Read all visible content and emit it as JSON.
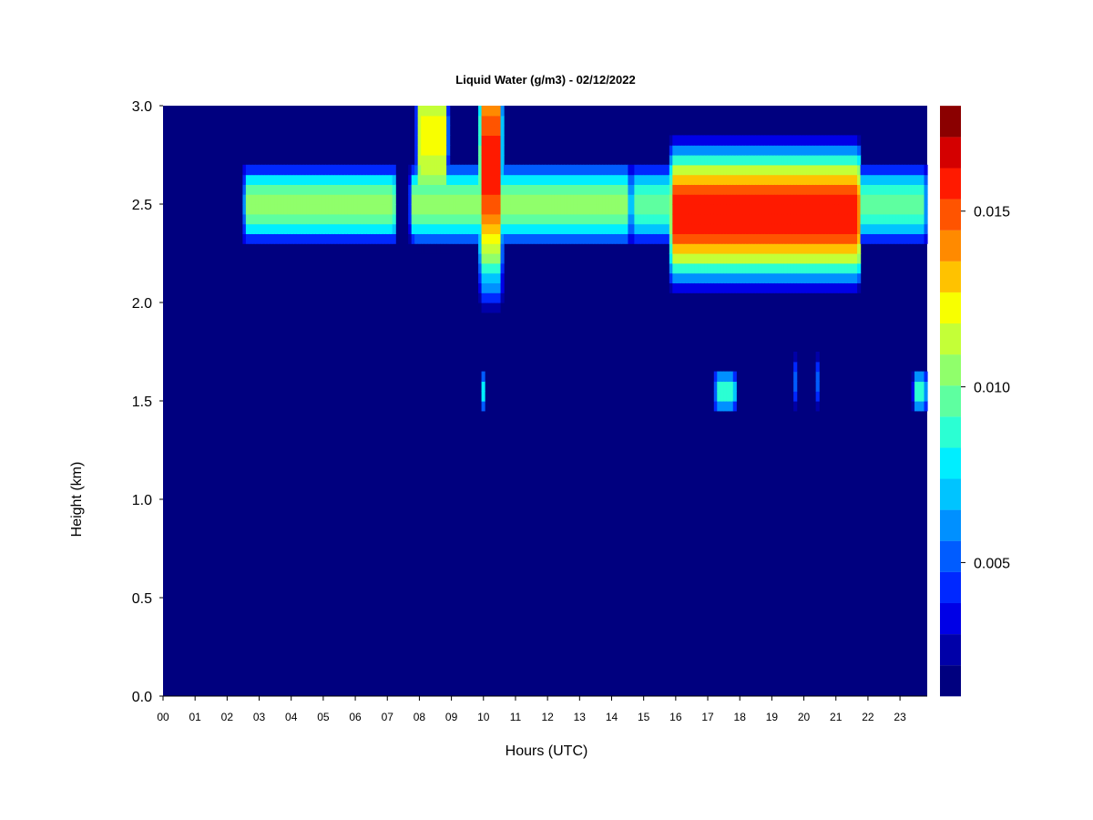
{
  "chart_data": {
    "type": "heatmap",
    "title": "Liquid Water (g/m3) - 02/12/2022",
    "xlabel": "Hours (UTC)",
    "ylabel": "Height (km)",
    "x_ticks": [
      "00",
      "01",
      "02",
      "03",
      "04",
      "05",
      "06",
      "07",
      "08",
      "09",
      "10",
      "11",
      "12",
      "13",
      "14",
      "15",
      "16",
      "17",
      "18",
      "19",
      "20",
      "21",
      "22",
      "23"
    ],
    "xlim": [
      0,
      23.85
    ],
    "ylim": [
      0,
      3.0
    ],
    "y_ticks": [
      "0.0",
      "0.5",
      "1.0",
      "1.5",
      "2.0",
      "2.5",
      "3.0"
    ],
    "colorbar": {
      "min": 0.0012,
      "max": 0.018,
      "ticks": [
        "0.005",
        "0.010",
        "0.015"
      ],
      "tick_values": [
        0.005,
        0.01,
        0.015
      ],
      "colors": [
        "#00007f",
        "#0000a8",
        "#0000e6",
        "#0028ff",
        "#005cff",
        "#0090ff",
        "#00c4ff",
        "#00eeff",
        "#2bffd3",
        "#5effa0",
        "#90ff6b",
        "#c4ff37",
        "#f8ff00",
        "#ffc200",
        "#ff8a00",
        "#ff5400",
        "#ff1a00",
        "#d40000",
        "#8b0000"
      ]
    },
    "background_value": 0.0012,
    "layers": [
      {
        "t0": 2.5,
        "t1": 7.3,
        "h_center": 2.5,
        "h_half": 0.22,
        "peak": 0.0105
      },
      {
        "t0": 7.7,
        "t1": 14.6,
        "h_center": 2.5,
        "h_half": 0.22,
        "peak": 0.011
      },
      {
        "t0": 14.6,
        "t1": 23.85,
        "h_center": 2.5,
        "h_half": 0.22,
        "peak": 0.0095
      },
      {
        "t0": 15.8,
        "t1": 21.8,
        "h_center": 2.45,
        "h_half": 0.4,
        "peak": 0.016
      },
      {
        "t0": 7.9,
        "t1": 8.9,
        "h_center": 2.85,
        "h_half": 0.6,
        "peak": 0.012
      },
      {
        "t0": 9.85,
        "t1": 10.6,
        "h_center": 2.7,
        "h_half": 0.75,
        "peak": 0.016
      },
      {
        "t0": 9.9,
        "t1": 10.05,
        "h_center": 1.55,
        "h_half": 0.12,
        "peak": 0.011
      },
      {
        "t0": 17.2,
        "t1": 17.9,
        "h_center": 1.55,
        "h_half": 0.12,
        "peak": 0.009
      },
      {
        "t0": 19.7,
        "t1": 19.8,
        "h_center": 1.6,
        "h_half": 0.15,
        "peak": 0.009
      },
      {
        "t0": 20.35,
        "t1": 20.45,
        "h_center": 1.6,
        "h_half": 0.15,
        "peak": 0.009
      },
      {
        "t0": 23.4,
        "t1": 23.85,
        "h_center": 1.55,
        "h_half": 0.12,
        "peak": 0.009
      }
    ]
  }
}
